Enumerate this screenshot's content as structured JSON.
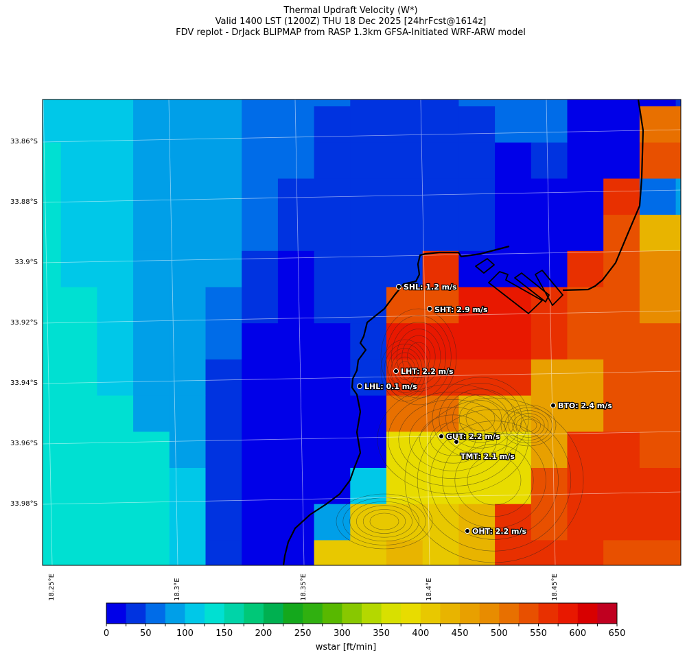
{
  "title": {
    "line1": "Thermal Updraft Velocity (W*)",
    "line2": "Valid 1400 LST (1200Z) THU 18 Dec 2025 [24hrFcst@1614z]",
    "line3": "FDV replot - DrJack BLIPMAP from RASP 1.3km GFSA-Initiated WRF-ARW model"
  },
  "axes": {
    "lat_ticks": [
      "33.86°S",
      "33.88°S",
      "33.9°S",
      "33.92°S",
      "33.94°S",
      "33.96°S",
      "33.98°S"
    ],
    "lon_ticks": [
      "18.25°E",
      "18.3°E",
      "18.35°E",
      "18.4°E",
      "18.45°E"
    ],
    "grid": true
  },
  "stations": [
    {
      "label": "SHL: 1.2 m/s"
    },
    {
      "label": "SHT: 2.9 m/s"
    },
    {
      "label": "LHT: 2.2 m/s"
    },
    {
      "label": "LHL: 0.1 m/s"
    },
    {
      "label": "BTO: 2.4 m/s"
    },
    {
      "label": "GUT: 2.2 m/s"
    },
    {
      "label": "TMT: 2.1 m/s"
    },
    {
      "label": "OHT: 2.2 m/s"
    }
  ],
  "colorbar": {
    "label": "wstar [ft/min]",
    "tick_labels": [
      "0",
      "50",
      "100",
      "150",
      "200",
      "250",
      "300",
      "350",
      "400",
      "450",
      "500",
      "550",
      "600",
      "650"
    ],
    "level_step": 25,
    "colors": [
      "#0000e8",
      "#0033e0",
      "#006ce8",
      "#009fe8",
      "#00c8e8",
      "#00e0d2",
      "#00d4a8",
      "#00c878",
      "#00b050",
      "#14a81c",
      "#30b010",
      "#58b800",
      "#88c800",
      "#b4d800",
      "#d8e000",
      "#e8dc00",
      "#e8c800",
      "#e8b400",
      "#e8a000",
      "#e88c00",
      "#e87000",
      "#e85000",
      "#e83000",
      "#e81800",
      "#d80000",
      "#c00020"
    ]
  },
  "chart_data": {
    "type": "heatmap",
    "variable": "wstar [ft/min]",
    "note_levels": "cell values are colorbar level indices (level i = i*25 to (i+1)*25 ft/min)",
    "grid_level_index": [
      [
        4,
        4,
        4,
        3,
        3,
        3,
        2,
        2,
        2,
        1,
        1,
        1,
        2,
        2,
        2,
        0,
        0,
        0,
        1
      ],
      [
        4,
        4,
        4,
        3,
        3,
        3,
        2,
        2,
        1,
        1,
        1,
        1,
        1,
        2,
        2,
        0,
        0,
        20,
        20
      ],
      [
        5,
        4,
        4,
        3,
        3,
        3,
        2,
        2,
        1,
        1,
        1,
        1,
        1,
        0,
        1,
        0,
        0,
        21,
        21
      ],
      [
        5,
        4,
        4,
        3,
        3,
        3,
        2,
        1,
        1,
        1,
        1,
        1,
        1,
        0,
        0,
        0,
        22,
        2,
        3
      ],
      [
        5,
        4,
        4,
        3,
        3,
        3,
        2,
        1,
        1,
        1,
        1,
        1,
        1,
        0,
        0,
        0,
        21,
        17,
        17
      ],
      [
        5,
        4,
        4,
        3,
        3,
        3,
        1,
        0,
        1,
        1,
        1,
        22,
        0,
        0,
        0,
        22,
        21,
        19,
        19
      ],
      [
        5,
        5,
        4,
        3,
        3,
        2,
        1,
        0,
        1,
        1,
        21,
        21,
        23,
        23,
        22,
        21,
        21,
        19,
        19
      ],
      [
        5,
        5,
        4,
        3,
        3,
        2,
        0,
        0,
        0,
        1,
        23,
        23,
        23,
        23,
        22,
        21,
        21,
        21,
        21
      ],
      [
        5,
        5,
        4,
        3,
        3,
        1,
        0,
        0,
        0,
        1,
        22,
        22,
        22,
        22,
        18,
        18,
        21,
        21,
        21
      ],
      [
        5,
        5,
        5,
        3,
        3,
        1,
        0,
        0,
        0,
        0,
        20,
        20,
        17,
        17,
        18,
        18,
        21,
        21,
        21
      ],
      [
        5,
        5,
        5,
        5,
        3,
        1,
        0,
        0,
        0,
        0,
        15,
        15,
        15,
        15,
        18,
        22,
        22,
        21,
        21
      ],
      [
        5,
        5,
        5,
        5,
        4,
        1,
        0,
        0,
        0,
        4,
        15,
        15,
        15,
        15,
        21,
        22,
        22,
        22,
        22
      ],
      [
        5,
        5,
        5,
        5,
        4,
        1,
        0,
        0,
        3,
        16,
        16,
        16,
        17,
        22,
        21,
        22,
        22,
        22,
        22
      ],
      [
        5,
        5,
        5,
        5,
        4,
        1,
        0,
        0,
        16,
        16,
        17,
        16,
        17,
        22,
        22,
        22,
        21,
        21,
        21
      ]
    ]
  }
}
